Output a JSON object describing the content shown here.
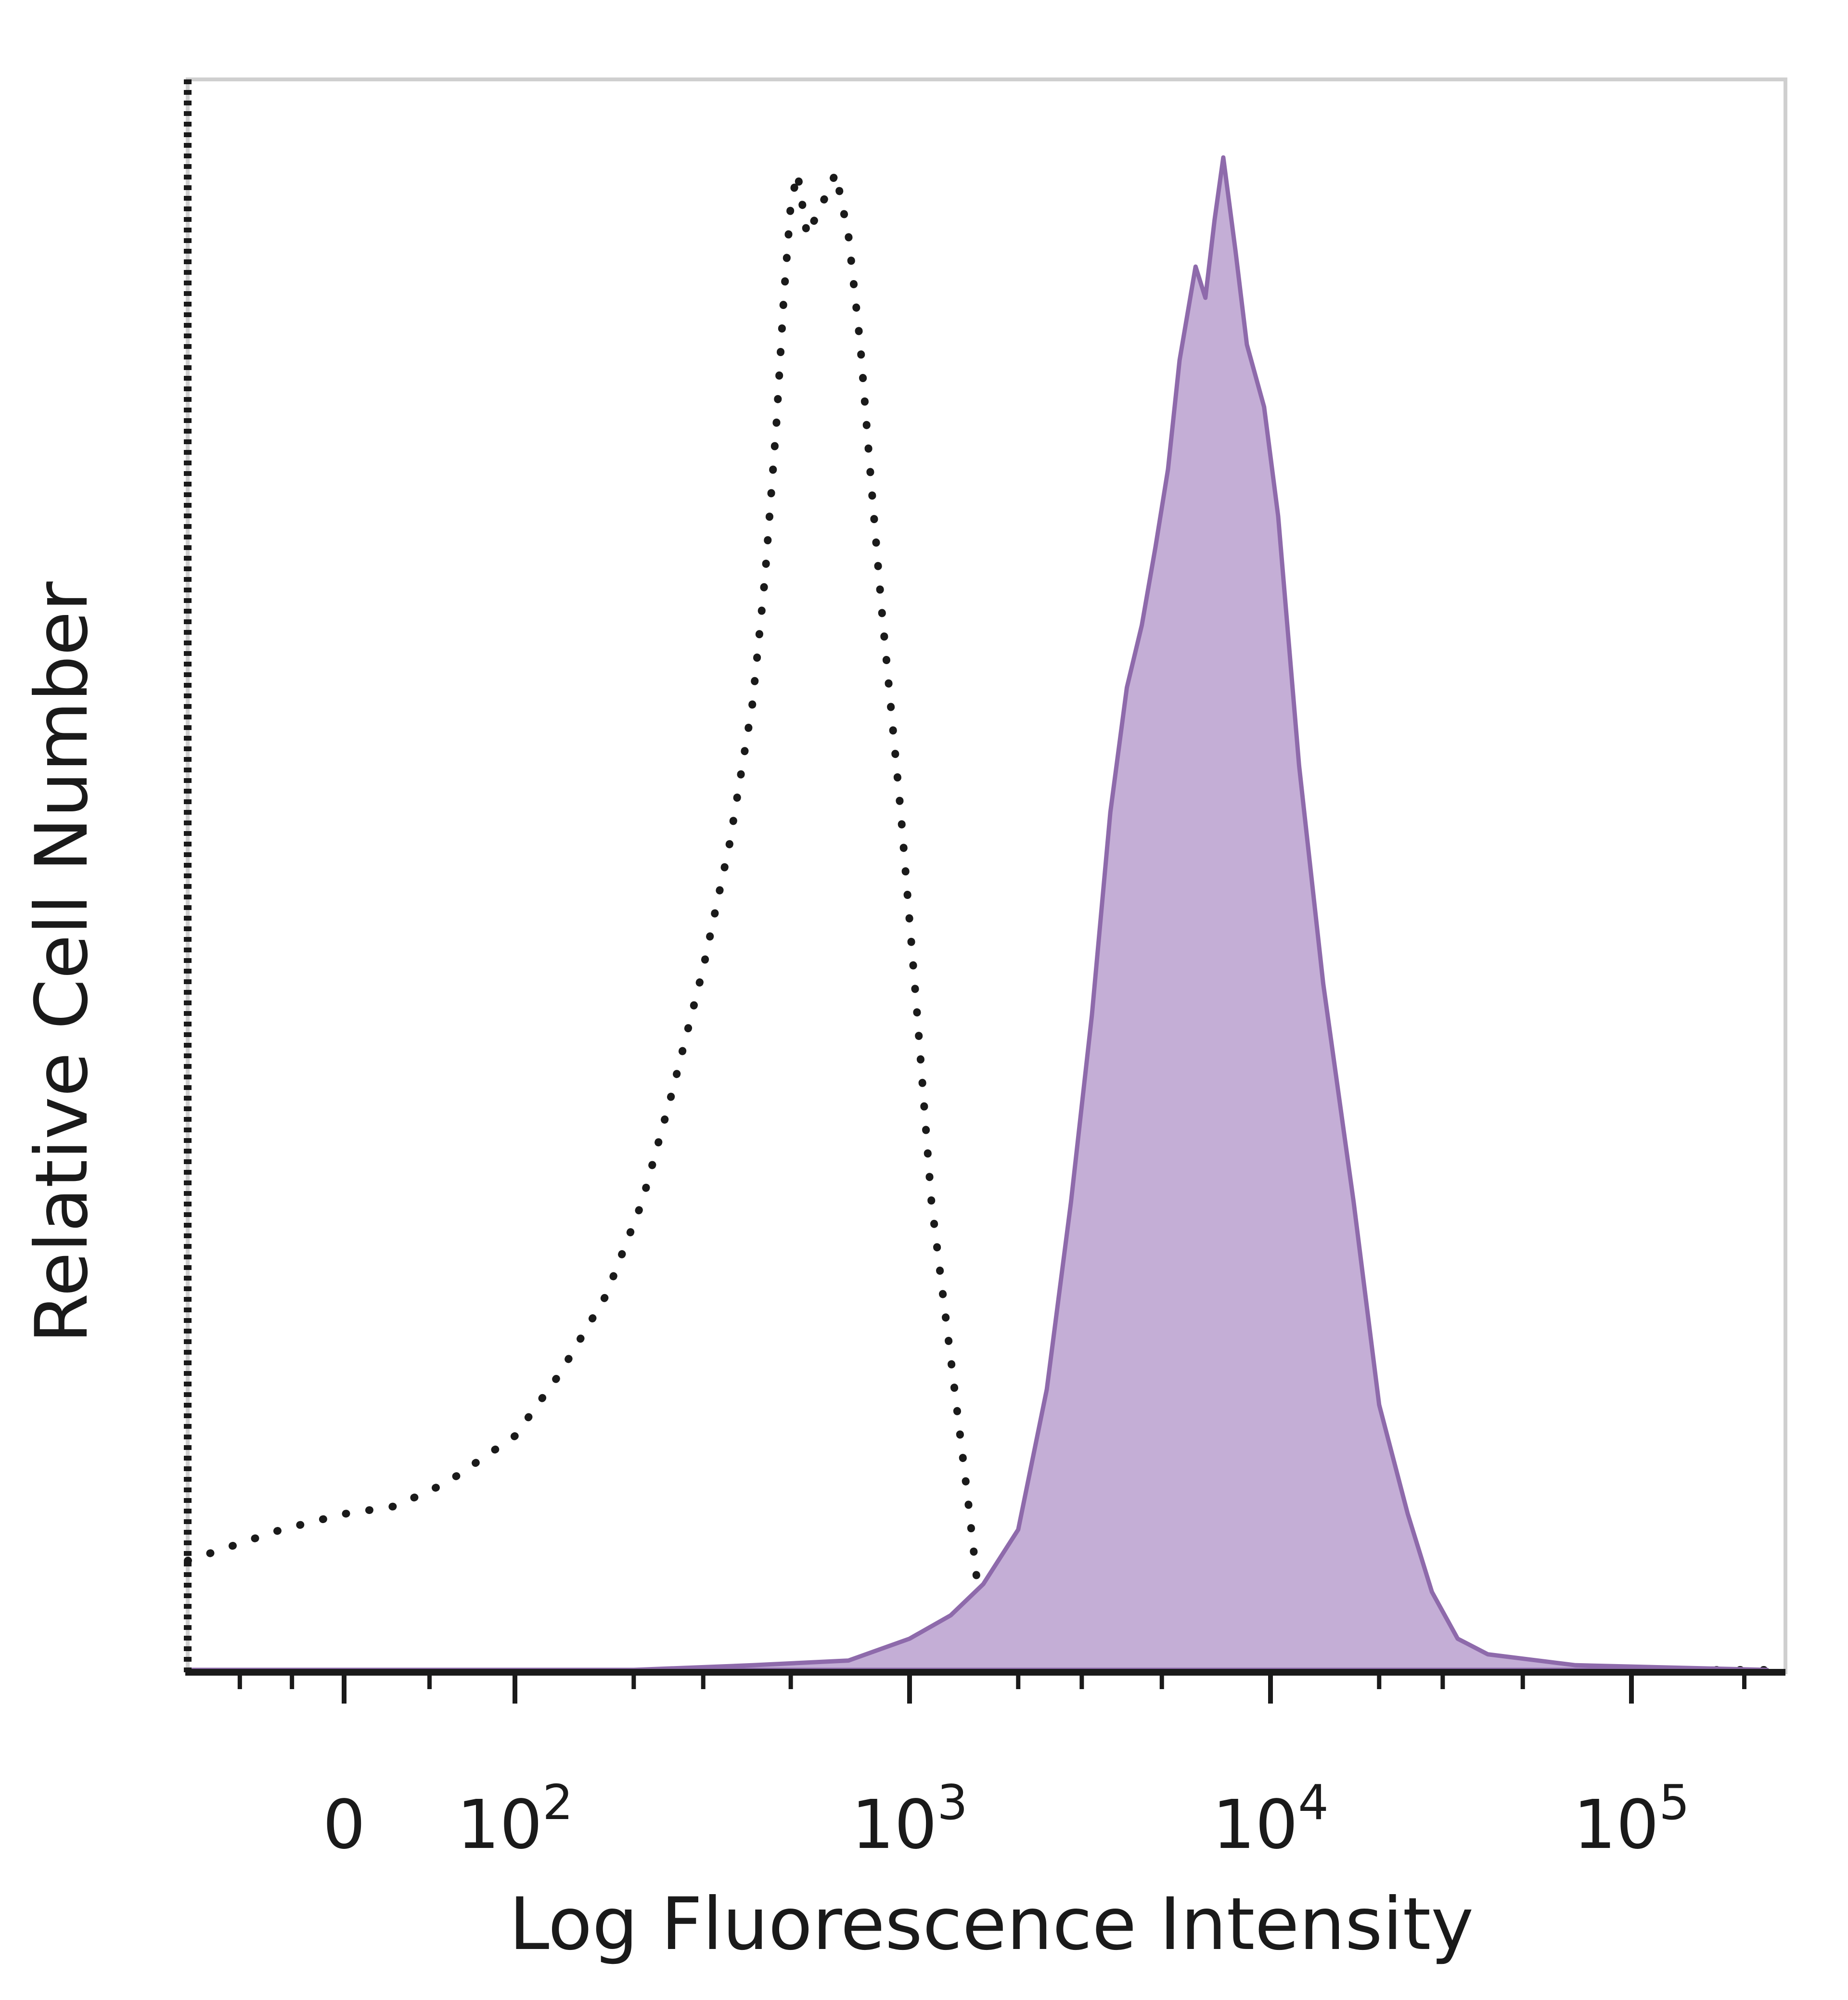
{
  "chart_data": {
    "type": "area",
    "title": "",
    "xlabel": "Log Fluorescence Intensity",
    "ylabel": "Relative Cell Number",
    "x_scale": "log (biexponential near 0)",
    "x_ticks": [
      {
        "value": 0,
        "label": "0"
      },
      {
        "value": 100,
        "base": "10",
        "exp": "2"
      },
      {
        "value": 1000,
        "base": "10",
        "exp": "3"
      },
      {
        "value": 10000,
        "base": "10",
        "exp": "4"
      },
      {
        "value": 100000,
        "base": "10",
        "exp": "5"
      }
    ],
    "xlim": [
      -150,
      250000
    ],
    "ylim": [
      0,
      100
    ],
    "grid": false,
    "legend": "none",
    "series": [
      {
        "style": "dotted",
        "color": "#1a1a1a",
        "points": [
          [
            -150,
            7
          ],
          [
            -60,
            9
          ],
          [
            0,
            10
          ],
          [
            30,
            10.5
          ],
          [
            60,
            12
          ],
          [
            100,
            15
          ],
          [
            130,
            19
          ],
          [
            170,
            24
          ],
          [
            210,
            30
          ],
          [
            250,
            37
          ],
          [
            300,
            45
          ],
          [
            350,
            53
          ],
          [
            400,
            62
          ],
          [
            430,
            70
          ],
          [
            460,
            80
          ],
          [
            480,
            88
          ],
          [
            500,
            94
          ],
          [
            520,
            96
          ],
          [
            550,
            92
          ],
          [
            600,
            94
          ],
          [
            650,
            96
          ],
          [
            700,
            92
          ],
          [
            750,
            85
          ],
          [
            800,
            76
          ],
          [
            850,
            68
          ],
          [
            950,
            55
          ],
          [
            1050,
            42
          ],
          [
            1150,
            30
          ],
          [
            1300,
            20
          ],
          [
            1450,
            11
          ],
          [
            1550,
            5
          ],
          [
            1700,
            1.5
          ],
          [
            2000,
            0.5
          ],
          [
            5000,
            0.2
          ],
          [
            20000,
            0
          ],
          [
            230000,
            0
          ]
        ]
      },
      {
        "style": "filled",
        "color": "#8e6aab",
        "fill": "#c4aed6",
        "points": [
          [
            -150,
            0
          ],
          [
            200,
            0
          ],
          [
            400,
            0.3
          ],
          [
            700,
            0.6
          ],
          [
            1000,
            2
          ],
          [
            1300,
            3.5
          ],
          [
            1600,
            5.5
          ],
          [
            2000,
            9
          ],
          [
            2400,
            18
          ],
          [
            2800,
            30
          ],
          [
            3200,
            42
          ],
          [
            3600,
            55
          ],
          [
            4000,
            63
          ],
          [
            4400,
            67
          ],
          [
            4800,
            72
          ],
          [
            5200,
            77
          ],
          [
            5600,
            84
          ],
          [
            6200,
            90
          ],
          [
            6600,
            88
          ],
          [
            7000,
            93
          ],
          [
            7400,
            97
          ],
          [
            8000,
            91
          ],
          [
            8600,
            85
          ],
          [
            9600,
            81
          ],
          [
            10500,
            74
          ],
          [
            12000,
            58
          ],
          [
            14000,
            44
          ],
          [
            17000,
            30
          ],
          [
            20000,
            17
          ],
          [
            24000,
            10
          ],
          [
            28000,
            5
          ],
          [
            33000,
            2
          ],
          [
            40000,
            1
          ],
          [
            70000,
            0.3
          ],
          [
            230000,
            0
          ]
        ]
      }
    ]
  }
}
